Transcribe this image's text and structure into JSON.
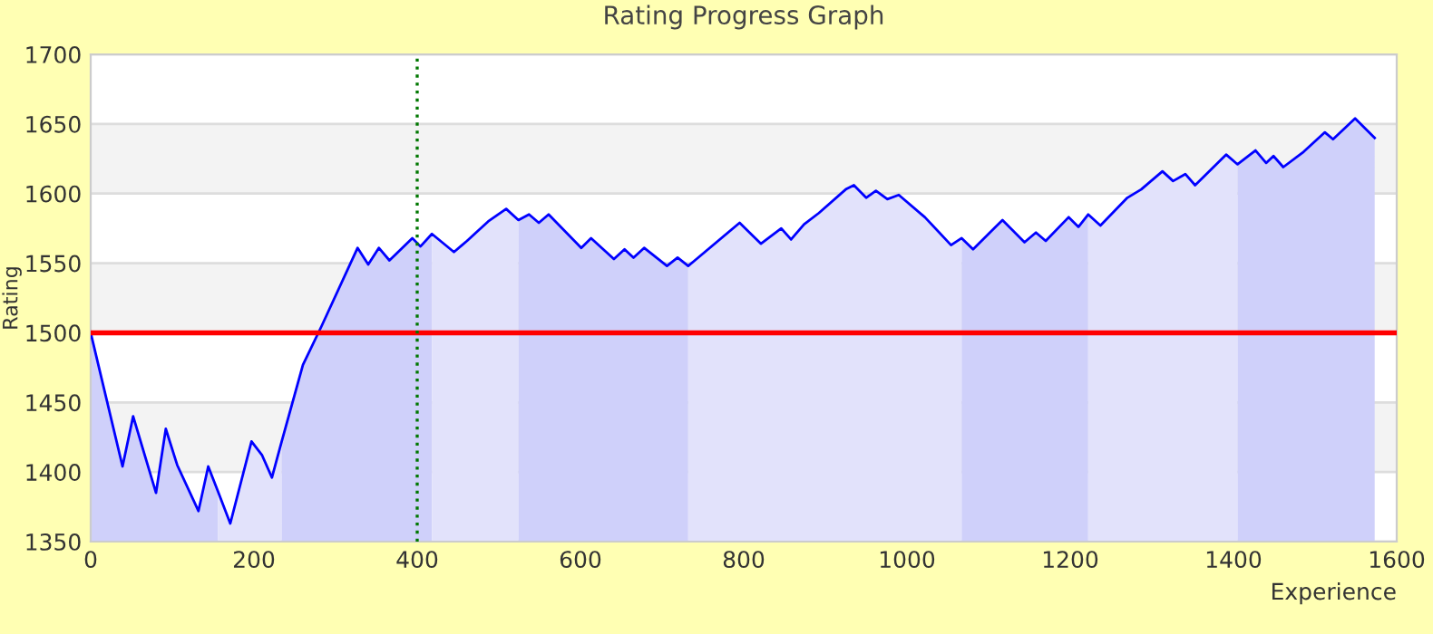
{
  "chart_data": {
    "type": "area",
    "title": "Rating Progress Graph",
    "xlabel": "Experience",
    "ylabel": "Rating",
    "series": [
      {
        "color": "#cfd0fa",
        "x": [
          0,
          39,
          52,
          80,
          92,
          106,
          132,
          144,
          156
        ],
        "values": [
          1500,
          1404,
          1440,
          1385,
          1431,
          1405,
          1372,
          1404,
          1386
        ]
      },
      {
        "color": "#e2e2fb",
        "x": [
          156,
          171,
          197,
          210,
          222,
          234
        ],
        "values": [
          1386,
          1363,
          1422,
          1412,
          1396,
          1422
        ]
      },
      {
        "color": "#cfd0fa",
        "x": [
          234,
          260,
          283,
          327,
          340,
          353,
          366,
          394,
          404,
          418
        ],
        "values": [
          1422,
          1477,
          1505,
          1561,
          1549,
          1561,
          1552,
          1568,
          1562,
          1571
        ]
      },
      {
        "color": "#e2e2fb",
        "x": [
          418,
          445,
          461,
          487,
          509,
          524
        ],
        "values": [
          1571,
          1558,
          1566,
          1580,
          1589,
          1581
        ]
      },
      {
        "color": "#cfd0fa",
        "x": [
          524,
          537,
          549,
          561,
          601,
          613,
          641,
          654,
          665,
          678,
          706,
          719,
          732
        ],
        "values": [
          1581,
          1585,
          1579,
          1585,
          1561,
          1568,
          1553,
          1560,
          1554,
          1561,
          1548,
          1554,
          1548
        ]
      },
      {
        "color": "#e2e2fb",
        "x": [
          732,
          795,
          821,
          846,
          858,
          874,
          892,
          925,
          935,
          950,
          962,
          976,
          990,
          1022,
          1054,
          1067
        ],
        "values": [
          1548,
          1579,
          1564,
          1575,
          1567,
          1578,
          1586,
          1603,
          1606,
          1597,
          1602,
          1596,
          1599,
          1583,
          1563,
          1568
        ]
      },
      {
        "color": "#cfd0fa",
        "x": [
          1067,
          1081,
          1117,
          1144,
          1158,
          1170,
          1198,
          1210,
          1222
        ],
        "values": [
          1568,
          1560,
          1581,
          1565,
          1572,
          1566,
          1583,
          1576,
          1585
        ]
      },
      {
        "color": "#e2e2fb",
        "x": [
          1222,
          1237,
          1270,
          1287,
          1313,
          1326,
          1341,
          1353,
          1391,
          1405
        ],
        "values": [
          1585,
          1577,
          1597,
          1603,
          1616,
          1609,
          1614,
          1606,
          1628,
          1621
        ]
      },
      {
        "color": "#cfd0fa",
        "x": [
          1405,
          1427,
          1440,
          1449,
          1461,
          1486,
          1512,
          1522,
          1549,
          1573
        ],
        "values": [
          1621,
          1631,
          1622,
          1627,
          1619,
          1630,
          1644,
          1639,
          1654,
          1640
        ]
      },
      {
        "type": "line",
        "color": "#0000ff",
        "x": [
          0,
          39,
          52,
          80,
          92,
          106,
          132,
          144,
          156,
          171,
          197,
          210,
          222,
          234,
          260,
          283,
          327,
          340,
          353,
          366,
          394,
          404,
          418,
          445,
          461,
          487,
          509,
          524,
          537,
          549,
          561,
          601,
          613,
          641,
          654,
          665,
          678,
          706,
          719,
          732,
          795,
          821,
          846,
          858,
          874,
          892,
          925,
          935,
          950,
          962,
          976,
          990,
          1022,
          1054,
          1067,
          1081,
          1117,
          1144,
          1158,
          1170,
          1198,
          1210,
          1222,
          1237,
          1270,
          1287,
          1313,
          1326,
          1341,
          1353,
          1391,
          1405,
          1427,
          1440,
          1449,
          1461,
          1486,
          1512,
          1522,
          1549,
          1573
        ],
        "values": [
          1500,
          1404,
          1440,
          1385,
          1431,
          1405,
          1372,
          1404,
          1386,
          1363,
          1422,
          1412,
          1396,
          1422,
          1477,
          1505,
          1561,
          1549,
          1561,
          1552,
          1568,
          1562,
          1571,
          1558,
          1566,
          1580,
          1589,
          1581,
          1585,
          1579,
          1585,
          1561,
          1568,
          1553,
          1560,
          1554,
          1561,
          1548,
          1554,
          1548,
          1579,
          1564,
          1575,
          1567,
          1578,
          1586,
          1603,
          1606,
          1597,
          1602,
          1596,
          1599,
          1583,
          1563,
          1568,
          1560,
          1581,
          1565,
          1572,
          1566,
          1583,
          1576,
          1585,
          1577,
          1597,
          1603,
          1616,
          1609,
          1614,
          1606,
          1628,
          1621,
          1631,
          1622,
          1627,
          1619,
          1630,
          1644,
          1639,
          1654,
          1640
        ]
      }
    ],
    "ref_lines": [
      {
        "axis": "y",
        "value": 1500,
        "color": "#ff0000",
        "line_style": "solid"
      },
      {
        "axis": "x",
        "value": 400,
        "color": "#007700",
        "line_style": "dotted"
      }
    ],
    "xlim": [
      0,
      1600
    ],
    "ylim": [
      1350,
      1700
    ],
    "xticks": [
      0,
      200,
      400,
      600,
      800,
      1000,
      1200,
      1400,
      1600
    ],
    "yticks": [
      1350,
      1400,
      1450,
      1500,
      1550,
      1600,
      1650,
      1700
    ],
    "grid": "y",
    "legend": false
  }
}
